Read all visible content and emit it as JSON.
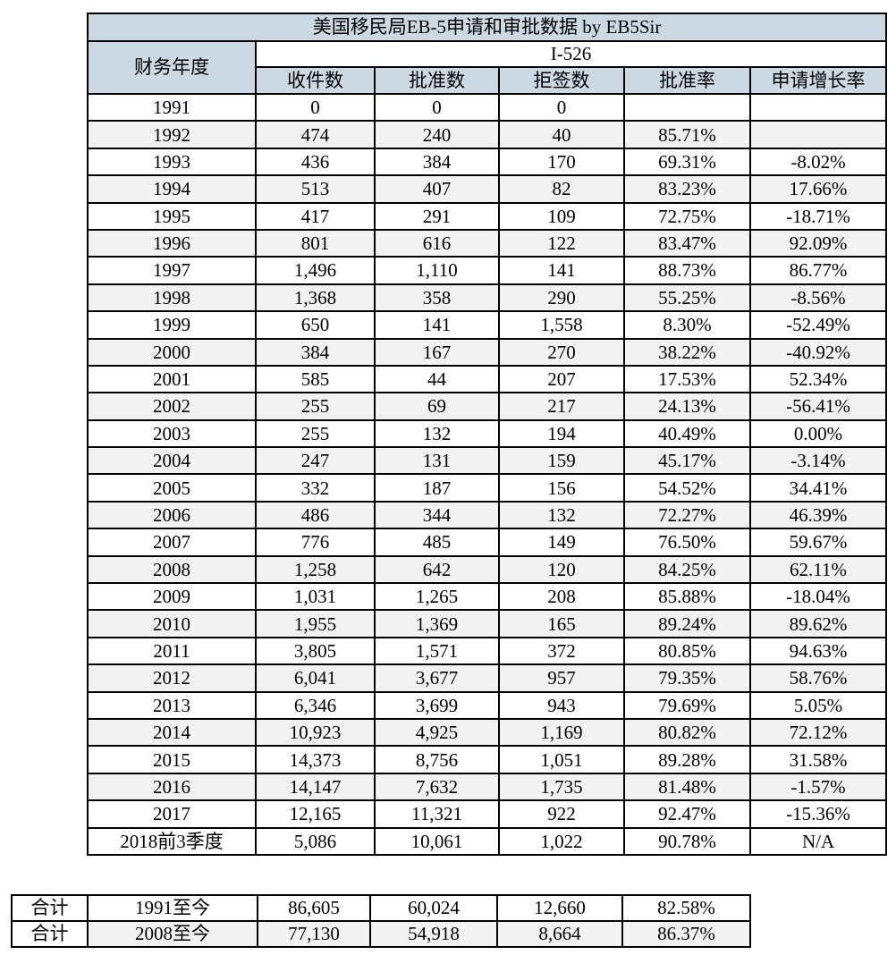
{
  "chart_data": {
    "type": "table",
    "title": "美国移民局EB-5申请和审批数据 by EB5Sir",
    "row_header": "财务年度",
    "group_header": "I-526",
    "columns": [
      "收件数",
      "批准数",
      "拒签数",
      "批准率",
      "申请增长率"
    ],
    "rows": [
      {
        "year": "1991",
        "cells": [
          "0",
          "0",
          "0",
          "",
          ""
        ],
        "shaded": false
      },
      {
        "year": "1992",
        "cells": [
          "474",
          "240",
          "40",
          "85.71%",
          ""
        ],
        "shaded": true
      },
      {
        "year": "1993",
        "cells": [
          "436",
          "384",
          "170",
          "69.31%",
          "-8.02%"
        ],
        "shaded": false
      },
      {
        "year": "1994",
        "cells": [
          "513",
          "407",
          "82",
          "83.23%",
          "17.66%"
        ],
        "shaded": true
      },
      {
        "year": "1995",
        "cells": [
          "417",
          "291",
          "109",
          "72.75%",
          "-18.71%"
        ],
        "shaded": false
      },
      {
        "year": "1996",
        "cells": [
          "801",
          "616",
          "122",
          "83.47%",
          "92.09%"
        ],
        "shaded": true
      },
      {
        "year": "1997",
        "cells": [
          "1,496",
          "1,110",
          "141",
          "88.73%",
          "86.77%"
        ],
        "shaded": false
      },
      {
        "year": "1998",
        "cells": [
          "1,368",
          "358",
          "290",
          "55.25%",
          "-8.56%"
        ],
        "shaded": true
      },
      {
        "year": "1999",
        "cells": [
          "650",
          "141",
          "1,558",
          "8.30%",
          "-52.49%"
        ],
        "shaded": false
      },
      {
        "year": "2000",
        "cells": [
          "384",
          "167",
          "270",
          "38.22%",
          "-40.92%"
        ],
        "shaded": true
      },
      {
        "year": "2001",
        "cells": [
          "585",
          "44",
          "207",
          "17.53%",
          "52.34%"
        ],
        "shaded": false
      },
      {
        "year": "2002",
        "cells": [
          "255",
          "69",
          "217",
          "24.13%",
          "-56.41%"
        ],
        "shaded": true
      },
      {
        "year": "2003",
        "cells": [
          "255",
          "132",
          "194",
          "40.49%",
          "0.00%"
        ],
        "shaded": false
      },
      {
        "year": "2004",
        "cells": [
          "247",
          "131",
          "159",
          "45.17%",
          "-3.14%"
        ],
        "shaded": true
      },
      {
        "year": "2005",
        "cells": [
          "332",
          "187",
          "156",
          "54.52%",
          "34.41%"
        ],
        "shaded": false
      },
      {
        "year": "2006",
        "cells": [
          "486",
          "344",
          "132",
          "72.27%",
          "46.39%"
        ],
        "shaded": true
      },
      {
        "year": "2007",
        "cells": [
          "776",
          "485",
          "149",
          "76.50%",
          "59.67%"
        ],
        "shaded": false
      },
      {
        "year": "2008",
        "cells": [
          "1,258",
          "642",
          "120",
          "84.25%",
          "62.11%"
        ],
        "shaded": true
      },
      {
        "year": "2009",
        "cells": [
          "1,031",
          "1,265",
          "208",
          "85.88%",
          "-18.04%"
        ],
        "shaded": false
      },
      {
        "year": "2010",
        "cells": [
          "1,955",
          "1,369",
          "165",
          "89.24%",
          "89.62%"
        ],
        "shaded": true
      },
      {
        "year": "2011",
        "cells": [
          "3,805",
          "1,571",
          "372",
          "80.85%",
          "94.63%"
        ],
        "shaded": false
      },
      {
        "year": "2012",
        "cells": [
          "6,041",
          "3,677",
          "957",
          "79.35%",
          "58.76%"
        ],
        "shaded": true
      },
      {
        "year": "2013",
        "cells": [
          "6,346",
          "3,699",
          "943",
          "79.69%",
          "5.05%"
        ],
        "shaded": false
      },
      {
        "year": "2014",
        "cells": [
          "10,923",
          "4,925",
          "1,169",
          "80.82%",
          "72.12%"
        ],
        "shaded": true
      },
      {
        "year": "2015",
        "cells": [
          "14,373",
          "8,756",
          "1,051",
          "89.28%",
          "31.58%"
        ],
        "shaded": false
      },
      {
        "year": "2016",
        "cells": [
          "14,147",
          "7,632",
          "1,735",
          "81.48%",
          "-1.57%"
        ],
        "shaded": true
      },
      {
        "year": "2017",
        "cells": [
          "12,165",
          "11,321",
          "922",
          "92.47%",
          "-15.36%"
        ],
        "shaded": false
      },
      {
        "year": "2018前3季度",
        "cells": [
          "5,086",
          "10,061",
          "1,022",
          "90.78%",
          "N/A"
        ],
        "shaded": false
      }
    ],
    "summary_rows": [
      {
        "label": "合计",
        "range": "1991至今",
        "cells": [
          "86,605",
          "60,024",
          "12,660",
          "82.58%"
        ],
        "shaded": false
      },
      {
        "label": "合计",
        "range": "2008至今",
        "cells": [
          "77,130",
          "54,918",
          "8,664",
          "86.37%"
        ],
        "shaded": true
      }
    ]
  },
  "colors": {
    "header_bg": "#ccd9e3",
    "row_alt_bg": "#f2f2f2",
    "border": "#000000",
    "text": "#000000"
  }
}
